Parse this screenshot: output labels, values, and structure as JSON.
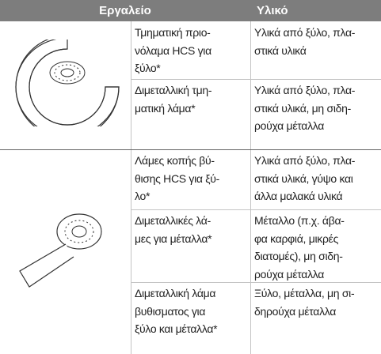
{
  "header": {
    "tool": "Εργαλείο",
    "material": "Υλικό"
  },
  "groups": [
    {
      "rows": [
        {
          "tool": [
            "Τμηματική πριο-",
            "νόλαμα HCS για",
            "ξύλο*"
          ],
          "material": [
            "Υλικά από ξύλο, πλα-",
            "στικά υλικά"
          ]
        },
        {
          "tool": [
            "Διμεταλλική τμη-",
            "ματική λάμα*"
          ],
          "material": [
            "Υλικά από ξύλο, πλα-",
            "στικά υλικά, μη σιδη-",
            "ρούχα μέταλλα"
          ]
        }
      ]
    },
    {
      "rows": [
        {
          "tool": [
            "Λάμες κοπής βύ-",
            "θισης HCS για ξύ-",
            "λο*"
          ],
          "material": [
            "Υλικά από ξύλο, πλα-",
            "στικά υλικά, γύψο και",
            "άλλα μαλακά υλικά"
          ]
        },
        {
          "tool": [
            "Διμεταλλικές λά-",
            "μες για μέταλλα*"
          ],
          "material": [
            "Μέταλλο (π.χ. άβα-",
            "φα καρφιά, μικρές",
            "διατομές), μη σιδη-",
            "ρούχα μέταλλα"
          ]
        },
        {
          "tool": [
            "Διμεταλλική λάμα",
            "βυθισματος για",
            "ξύλο και μέταλλα*"
          ],
          "material": [
            "Ξύλο, μέταλλα, μη σι-",
            "δηρούχα μέταλλα"
          ]
        }
      ]
    }
  ]
}
